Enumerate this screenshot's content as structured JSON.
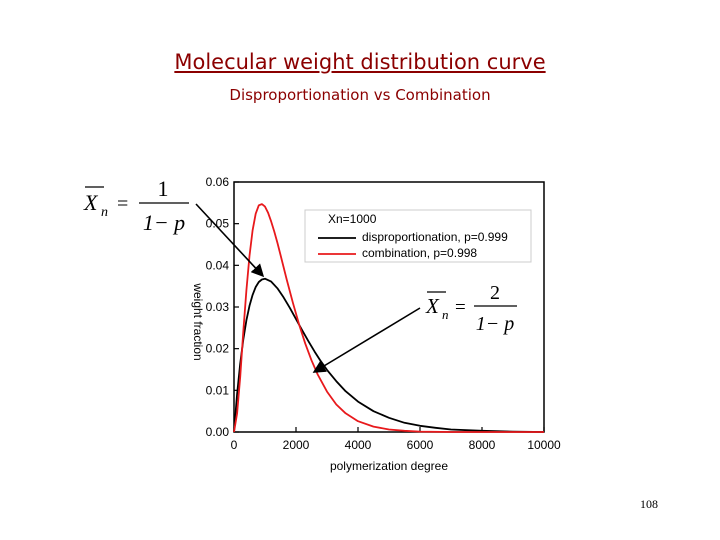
{
  "slide": {
    "title": "Molecular weight distribution curve",
    "subtitle": "Disproportionation vs Combination",
    "page_number": "108"
  },
  "formulas": {
    "left": {
      "lhs": "X",
      "sub": "n",
      "numerator": "1",
      "denominator": "1− p"
    },
    "right": {
      "lhs": "X",
      "sub": "n",
      "numerator": "2",
      "denominator": "1− p"
    }
  },
  "colors": {
    "disproportionation": "#000000",
    "combination": "#e8191c",
    "arrow": "#000000"
  },
  "chart_data": {
    "type": "line",
    "xlabel": "polymerization degree",
    "ylabel": "weight fraction",
    "xlim": [
      0,
      10000
    ],
    "ylim": [
      0,
      0.06
    ],
    "x_ticks": [
      "0",
      "2000",
      "4000",
      "6000",
      "8000",
      "10000"
    ],
    "y_ticks": [
      "0.00",
      "0.01",
      "0.02",
      "0.03",
      "0.04",
      "0.05",
      "0.06"
    ],
    "legend_title": "Xn=1000",
    "legend_position": "top-right",
    "series": [
      {
        "name": "disproportionation, p=0.999",
        "color": "#000000",
        "x": [
          0,
          100,
          200,
          300,
          400,
          500,
          600,
          700,
          800,
          900,
          1000,
          1200,
          1400,
          1600,
          1800,
          2000,
          2200,
          2400,
          2600,
          2800,
          3000,
          3300,
          3600,
          4000,
          4500,
          5000,
          5500,
          6000,
          6500,
          7000,
          8000,
          9000,
          10000
        ],
        "y": [
          0,
          0.0091,
          0.0164,
          0.0222,
          0.0268,
          0.0303,
          0.0329,
          0.0348,
          0.036,
          0.0366,
          0.0368,
          0.0361,
          0.0345,
          0.0323,
          0.0298,
          0.0271,
          0.0244,
          0.0218,
          0.0193,
          0.017,
          0.0149,
          0.0122,
          0.0098,
          0.0073,
          0.005,
          0.0034,
          0.0022,
          0.0015,
          0.001,
          0.0006,
          0.0003,
          0.0001,
          0.0
        ]
      },
      {
        "name": "combination, p=0.998",
        "color": "#e8191c",
        "x": [
          0,
          100,
          200,
          300,
          400,
          500,
          600,
          700,
          800,
          900,
          1000,
          1100,
          1200,
          1300,
          1400,
          1500,
          1700,
          1900,
          2100,
          2300,
          2500,
          2700,
          3000,
          3300,
          3600,
          4000,
          4500,
          5000,
          5500,
          6000,
          7000,
          8000,
          10000
        ],
        "y": [
          0,
          0.0045,
          0.0132,
          0.0241,
          0.034,
          0.0423,
          0.0484,
          0.0524,
          0.0544,
          0.0547,
          0.0541,
          0.0526,
          0.0505,
          0.0481,
          0.0454,
          0.0425,
          0.0366,
          0.031,
          0.0258,
          0.0212,
          0.0172,
          0.0138,
          0.0097,
          0.0066,
          0.0045,
          0.0026,
          0.0013,
          0.0006,
          0.0003,
          0.0001,
          0.0,
          0.0,
          0.0
        ]
      }
    ],
    "grid": false
  }
}
